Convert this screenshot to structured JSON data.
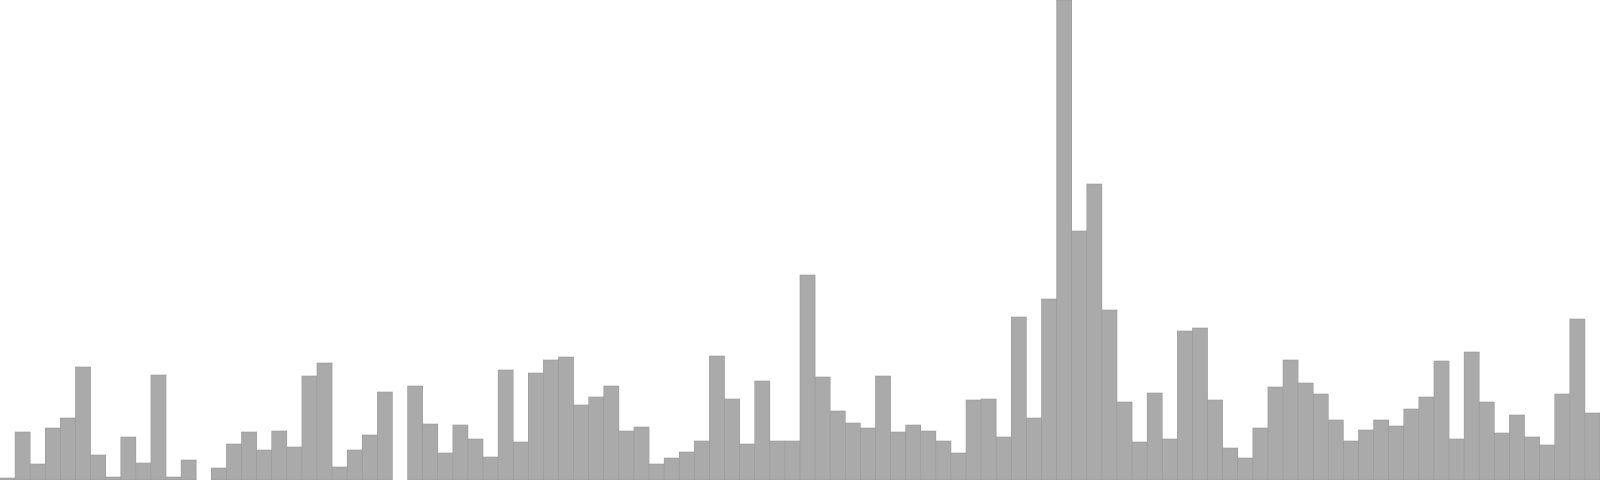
{
  "chart_data": {
    "type": "bar",
    "grid": false,
    "legend": "none",
    "color": "#aaaaaa",
    "edge_color": "#999999",
    "ylim": [
      0,
      480
    ],
    "values": [
      2,
      48,
      16,
      52,
      62,
      113,
      25,
      3,
      43,
      17,
      105,
      3,
      20,
      0,
      12,
      36,
      48,
      30,
      49,
      33,
      104,
      117,
      13,
      30,
      45,
      88,
      0,
      94,
      56,
      27,
      55,
      41,
      23,
      110,
      38,
      107,
      120,
      123,
      75,
      83,
      94,
      49,
      53,
      16,
      22,
      28,
      39,
      124,
      81,
      36,
      99,
      39,
      39,
      205,
      103,
      69,
      57,
      52,
      104,
      48,
      55,
      49,
      39,
      27,
      80,
      81,
      43,
      163,
      62,
      181,
      480,
      249,
      296,
      170,
      78,
      38,
      87,
      41,
      149,
      152,
      80,
      32,
      22,
      52,
      93,
      120,
      97,
      86,
      60,
      39,
      50,
      60,
      54,
      71,
      83,
      119,
      41,
      128,
      78,
      47,
      65,
      43,
      35,
      86,
      161,
      67
    ]
  }
}
